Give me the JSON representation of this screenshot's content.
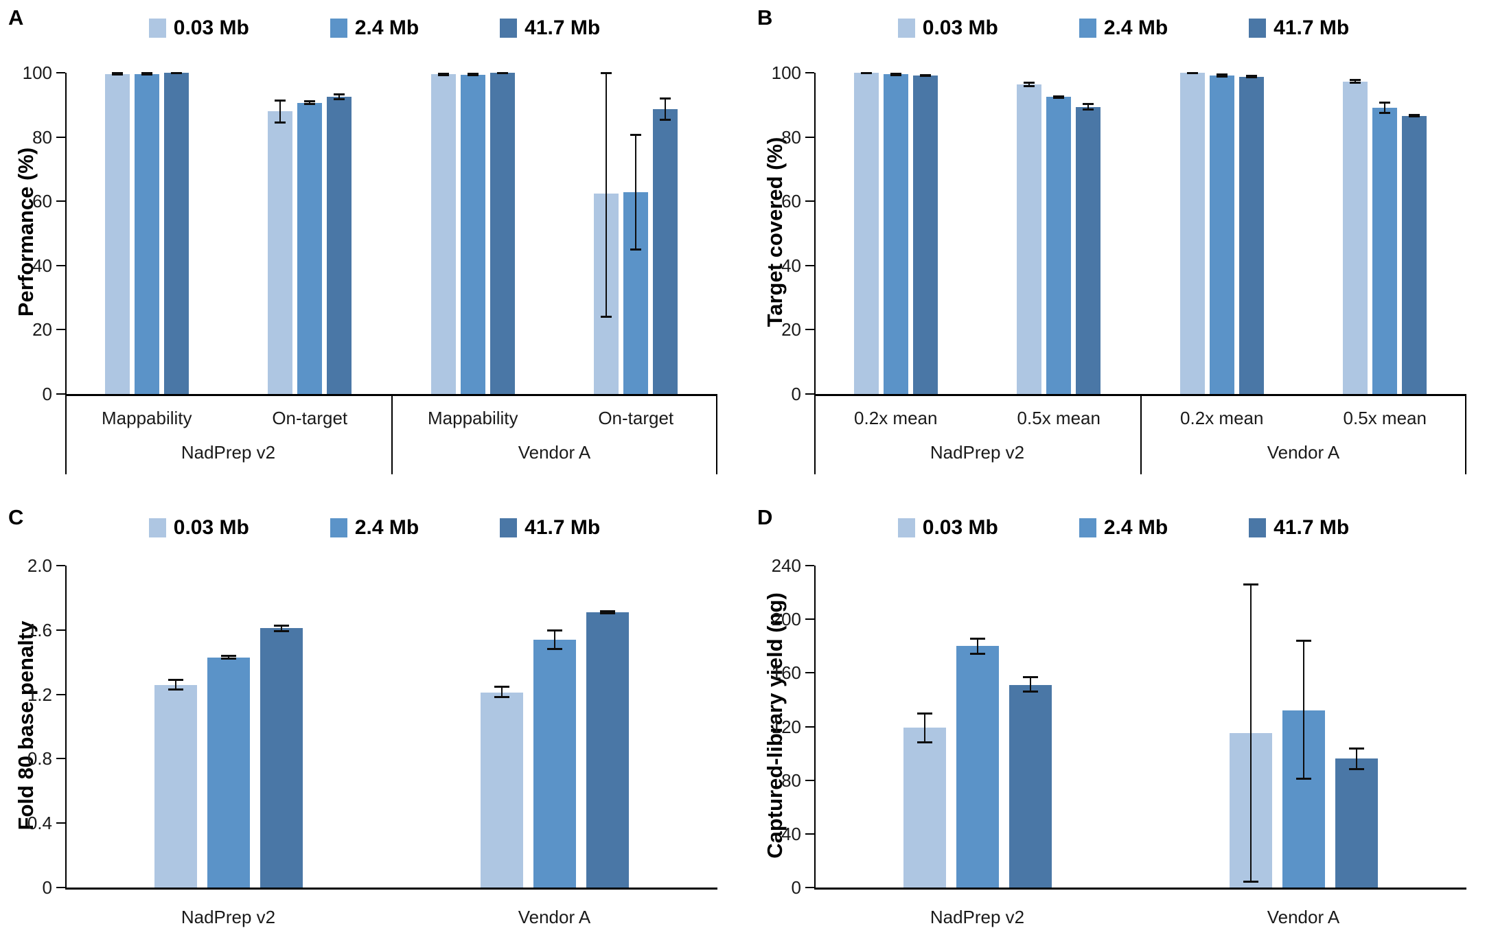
{
  "figure_title": "",
  "legend": {
    "items": [
      {
        "label": "0.03 Mb",
        "color": "#AEC6E2"
      },
      {
        "label": "2.4 Mb",
        "color": "#5B93C8"
      },
      {
        "label": "41.7 Mb",
        "color": "#4A77A6"
      }
    ]
  },
  "colors": {
    "series_light": "#AEC6E2",
    "series_mid": "#5B93C8",
    "series_dark": "#4A77A6",
    "axis": "#000000",
    "error_bar": "#0d0d0d"
  },
  "chart_data": [
    {
      "panel": "A",
      "type": "bar",
      "title": "",
      "ylabel": "Performance (%)",
      "xlabel": "",
      "ylim": [
        0,
        100
      ],
      "yticks": [
        0,
        20,
        40,
        60,
        80,
        100
      ],
      "grid": false,
      "legend_position": "top",
      "legend": [
        "0.03 Mb",
        "2.4 Mb",
        "41.7 Mb"
      ],
      "group_axis_boxed": true,
      "categories": [
        {
          "group": "NadPrep v2",
          "label": "Mappability"
        },
        {
          "group": "NadPrep v2",
          "label": "On-target"
        },
        {
          "group": "Vendor A",
          "label": "Mappability"
        },
        {
          "group": "Vendor A",
          "label": "On-target"
        }
      ],
      "series": [
        {
          "name": "0.03 Mb",
          "color": "#AEC6E2",
          "values": [
            99.6,
            88.0,
            99.5,
            62.3
          ],
          "err_lo": [
            99.3,
            84.3,
            99.2,
            24.0
          ],
          "err_hi": [
            100.0,
            91.5,
            99.8,
            100.0
          ]
        },
        {
          "name": "2.4 Mb",
          "color": "#5B93C8",
          "values": [
            99.6,
            90.7,
            99.4,
            62.8
          ],
          "err_lo": [
            99.3,
            90.1,
            99.1,
            44.8
          ],
          "err_hi": [
            99.9,
            91.3,
            99.7,
            80.8
          ]
        },
        {
          "name": "41.7 Mb",
          "color": "#4A77A6",
          "values": [
            99.9,
            92.5,
            99.9,
            88.7
          ],
          "err_lo": [
            99.7,
            91.6,
            99.7,
            85.3
          ],
          "err_hi": [
            100.0,
            93.4,
            100.0,
            92.2
          ]
        }
      ]
    },
    {
      "panel": "B",
      "type": "bar",
      "title": "",
      "ylabel": "Target covered (%)",
      "xlabel": "",
      "ylim": [
        0,
        100
      ],
      "yticks": [
        0,
        20,
        40,
        60,
        80,
        100
      ],
      "grid": false,
      "legend_position": "top",
      "legend": [
        "0.03 Mb",
        "2.4 Mb",
        "41.7 Mb"
      ],
      "group_axis_boxed": true,
      "categories": [
        {
          "group": "NadPrep v2",
          "label": "0.2x mean"
        },
        {
          "group": "NadPrep v2",
          "label": "0.5x mean"
        },
        {
          "group": "Vendor A",
          "label": "0.2x mean"
        },
        {
          "group": "Vendor A",
          "label": "0.5x mean"
        }
      ],
      "series": [
        {
          "name": "0.03 Mb",
          "color": "#AEC6E2",
          "values": [
            99.9,
            96.4,
            99.9,
            97.3
          ],
          "err_lo": [
            99.7,
            95.8,
            99.7,
            96.8
          ],
          "err_hi": [
            100.0,
            97.0,
            100.0,
            97.8
          ]
        },
        {
          "name": "2.4 Mb",
          "color": "#5B93C8",
          "values": [
            99.5,
            92.5,
            99.2,
            89.1
          ],
          "err_lo": [
            99.2,
            92.2,
            98.7,
            87.4
          ],
          "err_hi": [
            99.8,
            92.8,
            99.6,
            90.8
          ]
        },
        {
          "name": "41.7 Mb",
          "color": "#4A77A6",
          "values": [
            99.1,
            89.4,
            98.8,
            86.6
          ],
          "err_lo": [
            98.9,
            88.4,
            98.6,
            86.3
          ],
          "err_hi": [
            99.4,
            90.4,
            99.1,
            86.9
          ]
        }
      ]
    },
    {
      "panel": "C",
      "type": "bar",
      "title": "",
      "ylabel": "Fold 80 base penalty",
      "xlabel": "",
      "ylim": [
        0,
        2.0
      ],
      "yticks": [
        0,
        0.4,
        0.8,
        1.2,
        1.6,
        2.0
      ],
      "ytick_labels": [
        "0",
        "0.4",
        "0.8",
        "1.2",
        "1.6",
        "2.0"
      ],
      "grid": false,
      "legend_position": "top",
      "legend": [
        "0.03 Mb",
        "2.4 Mb",
        "41.7 Mb"
      ],
      "group_axis_boxed": false,
      "categories": [
        {
          "group": "NadPrep v2",
          "label": ""
        },
        {
          "group": "Vendor A",
          "label": ""
        }
      ],
      "series": [
        {
          "name": "0.03 Mb",
          "color": "#AEC6E2",
          "values": [
            1.26,
            1.21
          ],
          "err_lo": [
            1.23,
            1.18
          ],
          "err_hi": [
            1.29,
            1.25
          ]
        },
        {
          "name": "2.4 Mb",
          "color": "#5B93C8",
          "values": [
            1.43,
            1.54
          ],
          "err_lo": [
            1.42,
            1.48
          ],
          "err_hi": [
            1.44,
            1.6
          ]
        },
        {
          "name": "41.7 Mb",
          "color": "#4A77A6",
          "values": [
            1.61,
            1.71
          ],
          "err_lo": [
            1.59,
            1.7
          ],
          "err_hi": [
            1.63,
            1.72
          ]
        }
      ]
    },
    {
      "panel": "D",
      "type": "bar",
      "title": "",
      "ylabel": "Captured-library yield (ng)",
      "xlabel": "",
      "ylim": [
        0,
        240
      ],
      "yticks": [
        0,
        40,
        80,
        120,
        160,
        200,
        240
      ],
      "grid": false,
      "legend_position": "top",
      "legend": [
        "0.03 Mb",
        "2.4 Mb",
        "41.7 Mb"
      ],
      "group_axis_boxed": false,
      "categories": [
        {
          "group": "NadPrep v2",
          "label": ""
        },
        {
          "group": "Vendor A",
          "label": ""
        }
      ],
      "series": [
        {
          "name": "0.03 Mb",
          "color": "#AEC6E2",
          "values": [
            119,
            115
          ],
          "err_lo": [
            108,
            4
          ],
          "err_hi": [
            130,
            226
          ]
        },
        {
          "name": "2.4 Mb",
          "color": "#5B93C8",
          "values": [
            180,
            132
          ],
          "err_lo": [
            174,
            81
          ],
          "err_hi": [
            186,
            184
          ]
        },
        {
          "name": "41.7 Mb",
          "color": "#4A77A6",
          "values": [
            151,
            96
          ],
          "err_lo": [
            146,
            88
          ],
          "err_hi": [
            157,
            104
          ]
        }
      ]
    }
  ]
}
